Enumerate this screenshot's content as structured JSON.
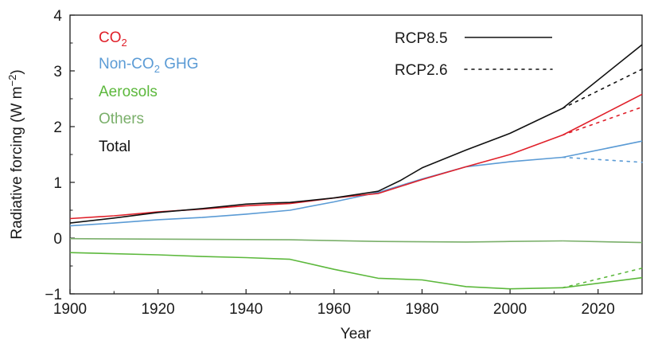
{
  "chart_data": {
    "type": "line",
    "title": "",
    "xlabel": "Year",
    "ylabel": "Radiative forcing (W m⁻²)",
    "ylabel_parts": {
      "main": "Radiative forcing (W m",
      "sup": "−2",
      "close": ")"
    },
    "xlim": [
      1900,
      2030
    ],
    "ylim": [
      -1,
      4
    ],
    "xticks": [
      1900,
      1920,
      1940,
      1960,
      1980,
      2000,
      2020
    ],
    "yticks": [
      -1,
      0,
      1,
      2,
      3,
      4
    ],
    "ytick_labels": [
      "−1",
      "0",
      "1",
      "2",
      "3",
      "4"
    ],
    "grid": false,
    "legend_placement": "top-left",
    "colors": {
      "co2": "#e0202a",
      "nonco2": "#5b9bd5",
      "aerosols": "#5cb83c",
      "others": "#7aaf6a",
      "total": "#111111"
    },
    "legend": [
      {
        "key": "co2",
        "label": "CO",
        "sub": "2"
      },
      {
        "key": "nonco2",
        "label": "Non-CO",
        "sub": "2",
        "suffix": " GHG"
      },
      {
        "key": "aerosols",
        "label": "Aerosols"
      },
      {
        "key": "others",
        "label": "Others"
      },
      {
        "key": "total",
        "label": "Total"
      }
    ],
    "scenario_legend": [
      {
        "label": "RCP8.5",
        "style": "solid"
      },
      {
        "label": "RCP2.6",
        "style": "dotted"
      }
    ],
    "series": [
      {
        "key": "co2",
        "x": [
          1900,
          1910,
          1920,
          1930,
          1940,
          1950,
          1960,
          1970,
          1980,
          1990,
          2000,
          2012
        ],
        "y": [
          0.35,
          0.4,
          0.47,
          0.52,
          0.58,
          0.62,
          0.72,
          0.8,
          1.05,
          1.28,
          1.5,
          1.85
        ]
      },
      {
        "key": "nonco2",
        "x": [
          1900,
          1910,
          1920,
          1930,
          1940,
          1950,
          1960,
          1970,
          1980,
          1990,
          2000,
          2012
        ],
        "y": [
          0.22,
          0.27,
          0.33,
          0.37,
          0.43,
          0.5,
          0.65,
          0.82,
          1.06,
          1.28,
          1.37,
          1.45
        ]
      },
      {
        "key": "aerosols",
        "x": [
          1900,
          1920,
          1930,
          1940,
          1950,
          1960,
          1970,
          1980,
          1990,
          2000,
          2012
        ],
        "y": [
          -0.26,
          -0.3,
          -0.33,
          -0.35,
          -0.38,
          -0.56,
          -0.72,
          -0.75,
          -0.87,
          -0.91,
          -0.89
        ]
      },
      {
        "key": "others",
        "x": [
          1900,
          1950,
          1970,
          1990,
          2000,
          2012
        ],
        "y": [
          -0.01,
          -0.03,
          -0.06,
          -0.07,
          -0.06,
          -0.05
        ]
      },
      {
        "key": "total",
        "x": [
          1900,
          1910,
          1920,
          1930,
          1940,
          1945,
          1950,
          1960,
          1970,
          1975,
          1980,
          1990,
          2000,
          2012
        ],
        "y": [
          0.27,
          0.36,
          0.46,
          0.53,
          0.61,
          0.63,
          0.64,
          0.72,
          0.84,
          1.03,
          1.26,
          1.58,
          1.88,
          2.33
        ]
      }
    ],
    "projections": {
      "rcp85": [
        {
          "key": "total",
          "x": [
            2012,
            2030
          ],
          "y": [
            2.33,
            3.47
          ]
        },
        {
          "key": "co2",
          "x": [
            2012,
            2030
          ],
          "y": [
            1.85,
            2.58
          ]
        },
        {
          "key": "nonco2",
          "x": [
            2012,
            2030
          ],
          "y": [
            1.45,
            1.74
          ]
        },
        {
          "key": "aerosols",
          "x": [
            2012,
            2030
          ],
          "y": [
            -0.89,
            -0.71
          ]
        },
        {
          "key": "others",
          "x": [
            2012,
            2030
          ],
          "y": [
            -0.05,
            -0.08
          ]
        }
      ],
      "rcp26": [
        {
          "key": "total",
          "x": [
            2012,
            2030
          ],
          "y": [
            2.33,
            3.03
          ]
        },
        {
          "key": "co2",
          "x": [
            2012,
            2030
          ],
          "y": [
            1.85,
            2.35
          ]
        },
        {
          "key": "nonco2",
          "x": [
            2012,
            2030
          ],
          "y": [
            1.45,
            1.36
          ]
        },
        {
          "key": "aerosols",
          "x": [
            2012,
            2030
          ],
          "y": [
            -0.89,
            -0.54
          ]
        }
      ]
    }
  }
}
